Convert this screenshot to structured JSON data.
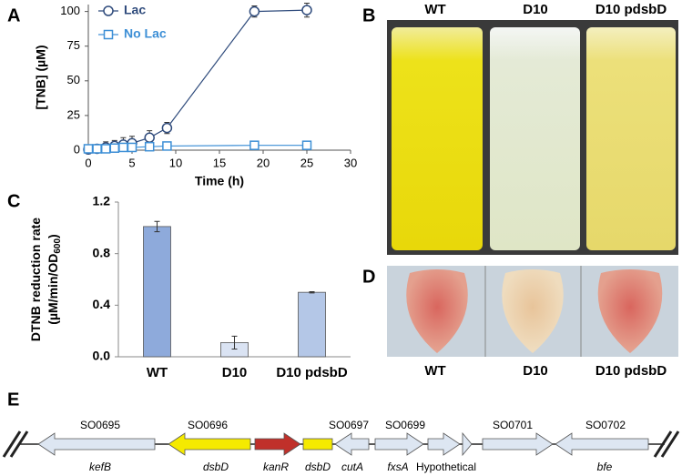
{
  "panel_labels": [
    "A",
    "B",
    "C",
    "D",
    "E"
  ],
  "chart_data": [
    {
      "type": "line",
      "xlabel": "Time (h)",
      "ylabel": "[TNB] (µM)",
      "xlim": [
        0,
        30
      ],
      "xticks": [
        0,
        5,
        10,
        15,
        20,
        25,
        30
      ],
      "ylim": [
        0,
        105
      ],
      "yticks": [
        0,
        25,
        50,
        75,
        100
      ],
      "legend": "upper left",
      "series": [
        {
          "name": "Lac",
          "color": "#2f4b7c",
          "marker": "circle",
          "x": [
            0,
            1,
            2,
            3,
            4,
            5,
            7,
            9,
            19,
            25
          ],
          "values": [
            0.5,
            1,
            2,
            3,
            4,
            5,
            9,
            16,
            100,
            101
          ],
          "errors": [
            3,
            3,
            4,
            4,
            5,
            5,
            5,
            4,
            4,
            5
          ]
        },
        {
          "name": "No Lac",
          "color": "#3d8fd6",
          "marker": "square",
          "x": [
            0,
            1,
            2,
            3,
            4,
            5,
            7,
            9,
            19,
            25
          ],
          "values": [
            1,
            1,
            1,
            1.5,
            2,
            2,
            2.5,
            3,
            3.5,
            3.5
          ],
          "errors": [
            1,
            1,
            1,
            1,
            1,
            1,
            1,
            1,
            1,
            1
          ]
        }
      ]
    },
    {
      "type": "bar",
      "ylabel": "DTNB reduction rate",
      "ylabel_unit": "(µM/min/OD",
      "ylabel_sub": "600",
      "ylabel_close": ")",
      "categories": [
        "WT",
        "D10",
        "D10 pdsbD"
      ],
      "values": [
        1.01,
        0.11,
        0.5
      ],
      "errors": [
        0.04,
        0.05,
        0.005
      ],
      "colors": [
        "#8eaadb",
        "#dae3f3",
        "#b4c7e7"
      ],
      "ylim": [
        0,
        1.2
      ],
      "yticks": [
        {
          "value": 0,
          "label": "0.0"
        },
        0.4,
        0.8,
        1.2
      ]
    }
  ],
  "photos": {
    "tubes": {
      "captions": [
        "WT",
        "D10",
        "D10 pdsbD"
      ]
    },
    "plates": {
      "captions": [
        "WT",
        "D10",
        "D10 pdsbD"
      ]
    }
  },
  "gene_map": {
    "loci": [
      "SO0695",
      "SO0696",
      "SO0697",
      "SO0699",
      "SO0701",
      "SO0702"
    ],
    "genes": [
      "kefB",
      "dsbD",
      "kanR",
      "dsbD",
      "cutA",
      "fxsA",
      "Hypothetical",
      "bfe"
    ]
  }
}
